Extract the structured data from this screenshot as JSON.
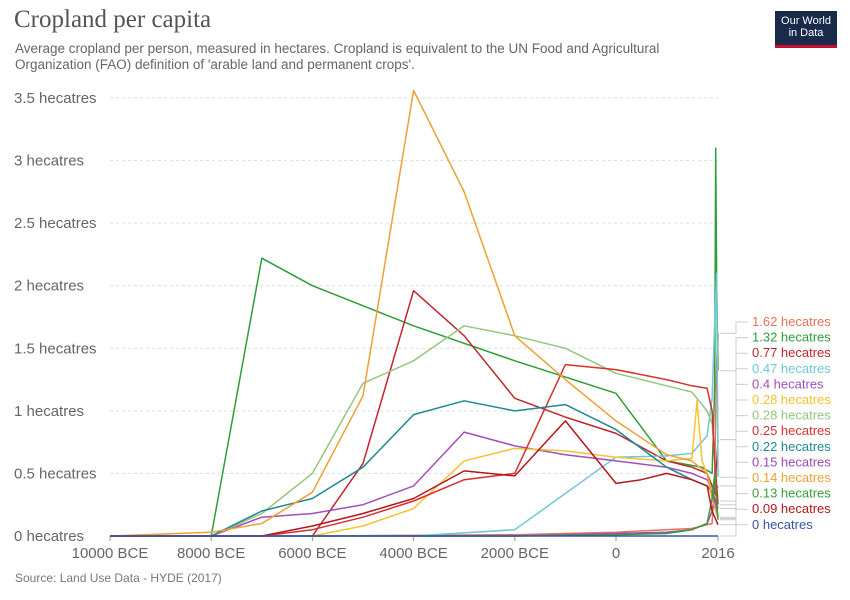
{
  "header": {
    "title": "Cropland per capita",
    "subtitle": "Average cropland per person, measured in hectares. Cropland is equivalent to the UN Food and Agricultural Organization (FAO) definition of 'arable land and permanent crops'.",
    "logo_line1": "Our World",
    "logo_line2": "in Data"
  },
  "footer": {
    "source": "Source: Land Use Data - HYDE (2017)"
  },
  "chart_data": {
    "type": "line",
    "title": "Cropland per capita",
    "xlim": [
      -10000,
      2016
    ],
    "ylim": [
      0,
      3.5
    ],
    "grid": "horizontal-dashed",
    "x_ticks": [
      {
        "value": -10000,
        "label": "10000 BCE"
      },
      {
        "value": -8000,
        "label": "8000 BCE"
      },
      {
        "value": -6000,
        "label": "6000 BCE"
      },
      {
        "value": -4000,
        "label": "4000 BCE"
      },
      {
        "value": -2000,
        "label": "2000 BCE"
      },
      {
        "value": 0,
        "label": "0"
      },
      {
        "value": 2016,
        "label": "2016"
      }
    ],
    "y_ticks": [
      {
        "value": 0,
        "label": "0 hecatres"
      },
      {
        "value": 0.5,
        "label": "0.5 hecatres"
      },
      {
        "value": 1,
        "label": "1 hecatres"
      },
      {
        "value": 1.5,
        "label": "1.5 hecatres"
      },
      {
        "value": 2,
        "label": "2 hecatres"
      },
      {
        "value": 2.5,
        "label": "2.5 hecatres"
      },
      {
        "value": 3,
        "label": "3 hecatres"
      },
      {
        "value": 3.5,
        "label": "3.5 hecatres"
      }
    ],
    "legend_position": "right",
    "series": [
      {
        "color": "#e87059",
        "end_label": "1.62 hecatres",
        "points": [
          [
            -10000,
            0
          ],
          [
            -6000,
            0
          ],
          [
            -2000,
            0.01
          ],
          [
            0,
            0.03
          ],
          [
            1500,
            0.06
          ],
          [
            1900,
            0.1
          ],
          [
            1950,
            0.5
          ],
          [
            1990,
            1.4
          ],
          [
            2016,
            1.62
          ]
        ]
      },
      {
        "color": "#2e9e3a",
        "end_label": "1.32 hecatres",
        "points": [
          [
            -10000,
            0
          ],
          [
            -8000,
            0
          ],
          [
            -7000,
            2.22
          ],
          [
            -6000,
            2.0
          ],
          [
            -4000,
            1.68
          ],
          [
            -2000,
            1.4
          ],
          [
            0,
            1.14
          ],
          [
            1000,
            0.6
          ],
          [
            1700,
            0.55
          ],
          [
            1900,
            0.5
          ],
          [
            1950,
            1.2
          ],
          [
            1970,
            3.1
          ],
          [
            1990,
            2.0
          ],
          [
            2016,
            1.32
          ]
        ]
      },
      {
        "color": "#c2252c",
        "end_label": "0.77 hecatres",
        "points": [
          [
            -10000,
            0
          ],
          [
            -6000,
            0
          ],
          [
            -5000,
            0.58
          ],
          [
            -4000,
            1.96
          ],
          [
            -3000,
            1.6
          ],
          [
            -2000,
            1.1
          ],
          [
            -1000,
            0.95
          ],
          [
            0,
            0.82
          ],
          [
            1000,
            0.6
          ],
          [
            1500,
            0.55
          ],
          [
            1800,
            0.5
          ],
          [
            1900,
            0.4
          ],
          [
            1950,
            0.3
          ],
          [
            2016,
            0.77
          ]
        ]
      },
      {
        "color": "#6fc7d8",
        "end_label": "0.47 hecatres",
        "points": [
          [
            -10000,
            0
          ],
          [
            -4000,
            0
          ],
          [
            -2000,
            0.05
          ],
          [
            0,
            0.63
          ],
          [
            1000,
            0.64
          ],
          [
            1500,
            0.66
          ],
          [
            1800,
            0.8
          ],
          [
            1900,
            1.1
          ],
          [
            1950,
            1.7
          ],
          [
            1990,
            2.1
          ],
          [
            2016,
            0.47
          ]
        ]
      },
      {
        "color": "#a34fba",
        "end_label": "0.4 hecatres",
        "points": [
          [
            -10000,
            0
          ],
          [
            -8000,
            0
          ],
          [
            -7000,
            0.15
          ],
          [
            -6000,
            0.18
          ],
          [
            -5000,
            0.25
          ],
          [
            -4000,
            0.4
          ],
          [
            -3000,
            0.83
          ],
          [
            -2000,
            0.72
          ],
          [
            -1000,
            0.65
          ],
          [
            0,
            0.6
          ],
          [
            1000,
            0.55
          ],
          [
            1500,
            0.5
          ],
          [
            1800,
            0.45
          ],
          [
            1950,
            0.35
          ],
          [
            2016,
            0.4
          ]
        ]
      },
      {
        "color": "#f5c431",
        "end_label": "0.28 hecatres",
        "points": [
          [
            -10000,
            0
          ],
          [
            -6000,
            0
          ],
          [
            -5000,
            0.08
          ],
          [
            -4000,
            0.22
          ],
          [
            -3000,
            0.6
          ],
          [
            -2000,
            0.7
          ],
          [
            -1000,
            0.68
          ],
          [
            0,
            0.63
          ],
          [
            1000,
            0.6
          ],
          [
            1500,
            0.62
          ],
          [
            1600,
            1.08
          ],
          [
            1700,
            0.6
          ],
          [
            1800,
            0.5
          ],
          [
            1900,
            0.35
          ],
          [
            2016,
            0.28
          ]
        ]
      },
      {
        "color": "#95c77e",
        "end_label": "0.28 hecatres",
        "points": [
          [
            -10000,
            0
          ],
          [
            -8000,
            0
          ],
          [
            -7000,
            0.18
          ],
          [
            -6000,
            0.5
          ],
          [
            -5000,
            1.22
          ],
          [
            -4000,
            1.4
          ],
          [
            -3000,
            1.68
          ],
          [
            -2000,
            1.6
          ],
          [
            -1000,
            1.5
          ],
          [
            0,
            1.3
          ],
          [
            1000,
            1.2
          ],
          [
            1500,
            1.15
          ],
          [
            1800,
            1.0
          ],
          [
            1900,
            0.9
          ],
          [
            2016,
            0.28
          ]
        ]
      },
      {
        "color": "#d92f2f",
        "end_label": "0.25 hecatres",
        "points": [
          [
            -10000,
            0
          ],
          [
            -7000,
            0
          ],
          [
            -6000,
            0.05
          ],
          [
            -5000,
            0.15
          ],
          [
            -4000,
            0.28
          ],
          [
            -3000,
            0.45
          ],
          [
            -2000,
            0.5
          ],
          [
            -1000,
            1.37
          ],
          [
            0,
            1.33
          ],
          [
            1000,
            1.25
          ],
          [
            1500,
            1.2
          ],
          [
            1800,
            1.18
          ],
          [
            1900,
            1.0
          ],
          [
            1950,
            0.6
          ],
          [
            2016,
            0.25
          ]
        ]
      },
      {
        "color": "#1d8a93",
        "end_label": "0.22 hecatres",
        "points": [
          [
            -10000,
            0
          ],
          [
            -8000,
            0
          ],
          [
            -7000,
            0.2
          ],
          [
            -6000,
            0.3
          ],
          [
            -5000,
            0.55
          ],
          [
            -4000,
            0.97
          ],
          [
            -3000,
            1.08
          ],
          [
            -2000,
            1.0
          ],
          [
            -1000,
            1.05
          ],
          [
            0,
            0.85
          ],
          [
            1000,
            0.55
          ],
          [
            1500,
            0.45
          ],
          [
            1800,
            0.4
          ],
          [
            1900,
            0.35
          ],
          [
            2016,
            0.22
          ]
        ]
      },
      {
        "color": "#9b4bb5",
        "end_label": "0.15 hecatres",
        "points": [
          [
            -10000,
            0
          ],
          [
            -2000,
            0
          ],
          [
            0,
            0.02
          ],
          [
            1000,
            0.03
          ],
          [
            1500,
            0.05
          ],
          [
            1800,
            0.1
          ],
          [
            1900,
            0.2
          ],
          [
            1950,
            0.3
          ],
          [
            2016,
            0.15
          ]
        ]
      },
      {
        "color": "#f0a030",
        "end_label": "0.14 hecatres",
        "points": [
          [
            -10000,
            0
          ],
          [
            -8000,
            0.03
          ],
          [
            -7000,
            0.1
          ],
          [
            -6000,
            0.35
          ],
          [
            -5000,
            1.12
          ],
          [
            -4000,
            3.56
          ],
          [
            -3000,
            2.75
          ],
          [
            -2000,
            1.6
          ],
          [
            -1000,
            1.25
          ],
          [
            0,
            0.92
          ],
          [
            1000,
            0.65
          ],
          [
            1500,
            0.6
          ],
          [
            1800,
            0.5
          ],
          [
            1900,
            0.3
          ],
          [
            2016,
            0.14
          ]
        ]
      },
      {
        "color": "#3a9c3a",
        "end_label": "0.13 hecatres",
        "points": [
          [
            -10000,
            0
          ],
          [
            -2000,
            0
          ],
          [
            0,
            0.01
          ],
          [
            1000,
            0.02
          ],
          [
            1500,
            0.05
          ],
          [
            1800,
            0.1
          ],
          [
            1900,
            0.3
          ],
          [
            1950,
            0.5
          ],
          [
            2016,
            0.13
          ]
        ]
      },
      {
        "color": "#b5171e",
        "end_label": "0.09 hecatres",
        "points": [
          [
            -10000,
            0
          ],
          [
            -7000,
            0
          ],
          [
            -6000,
            0.08
          ],
          [
            -5000,
            0.18
          ],
          [
            -4000,
            0.3
          ],
          [
            -3000,
            0.52
          ],
          [
            -2000,
            0.48
          ],
          [
            -1000,
            0.92
          ],
          [
            0,
            0.42
          ],
          [
            500,
            0.45
          ],
          [
            1000,
            0.5
          ],
          [
            1500,
            0.45
          ],
          [
            1800,
            0.4
          ],
          [
            1900,
            0.2
          ],
          [
            2016,
            0.09
          ]
        ]
      },
      {
        "color": "#3855a5",
        "end_label": "0 hecatres",
        "points": [
          [
            -10000,
            0
          ],
          [
            2016,
            0
          ]
        ]
      }
    ]
  }
}
